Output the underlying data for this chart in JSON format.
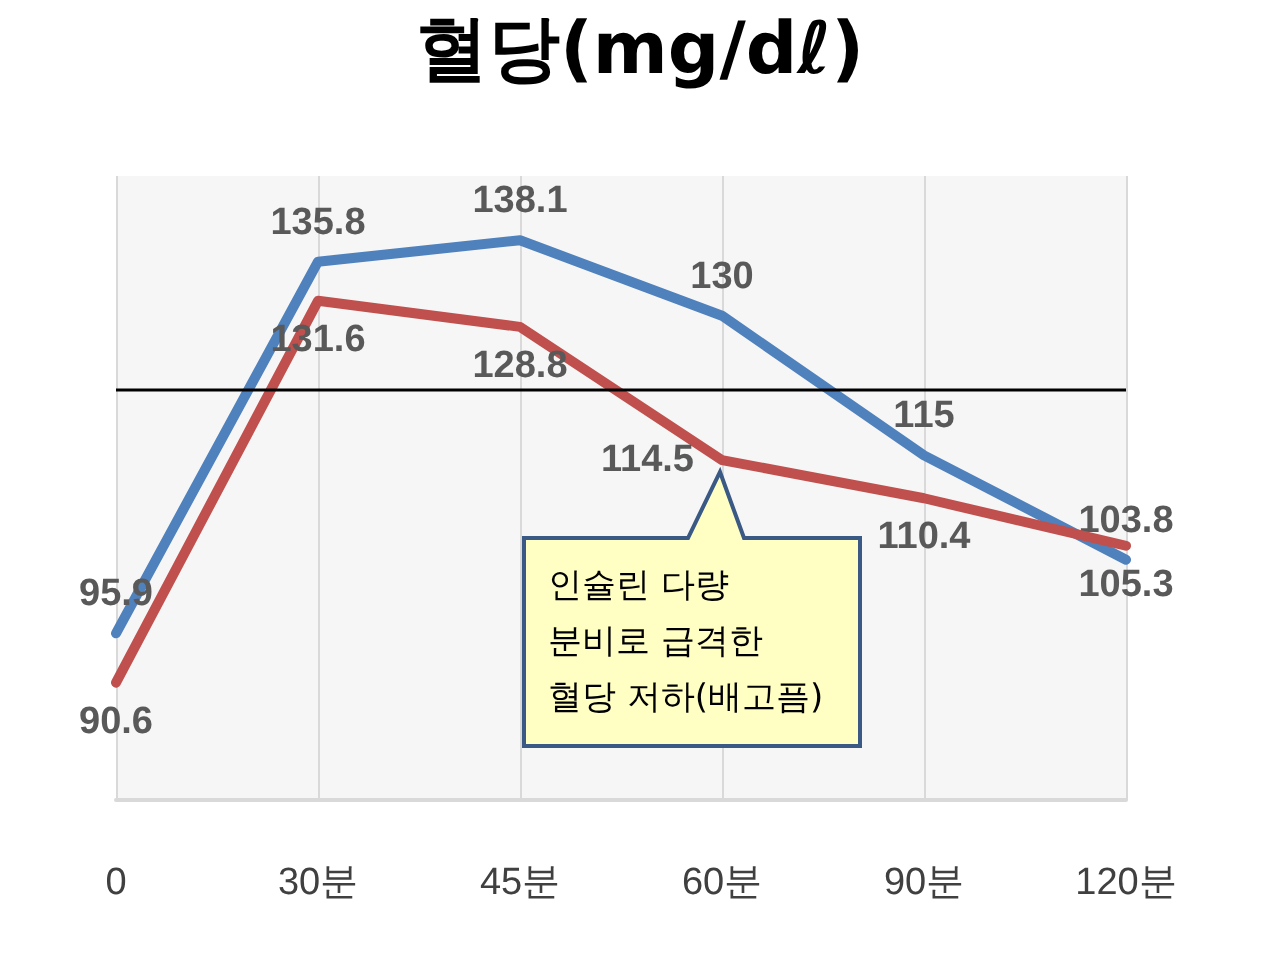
{
  "chart_data": {
    "type": "line",
    "title": "혈당(mg/dℓ)",
    "categories": [
      "0",
      "30분",
      "45분",
      "60분",
      "90분",
      "120분"
    ],
    "series": [
      {
        "color": "#4f81bd",
        "values": [
          95.9,
          135.8,
          138.1,
          130,
          115,
          103.8
        ]
      },
      {
        "color": "#c0504d",
        "values": [
          90.6,
          131.6,
          128.8,
          114.5,
          110.4,
          105.3
        ]
      }
    ],
    "ylim": [
      78,
      145
    ],
    "data_labels": true,
    "grid": "x",
    "marker": "none",
    "line_style": "solid",
    "ref_lines": [
      {
        "axis": "y",
        "value": 122,
        "color": "#000000"
      }
    ],
    "annotations": [
      "인슐린 다량 분비로 급격한 혈당 저하(배고픔)"
    ]
  }
}
